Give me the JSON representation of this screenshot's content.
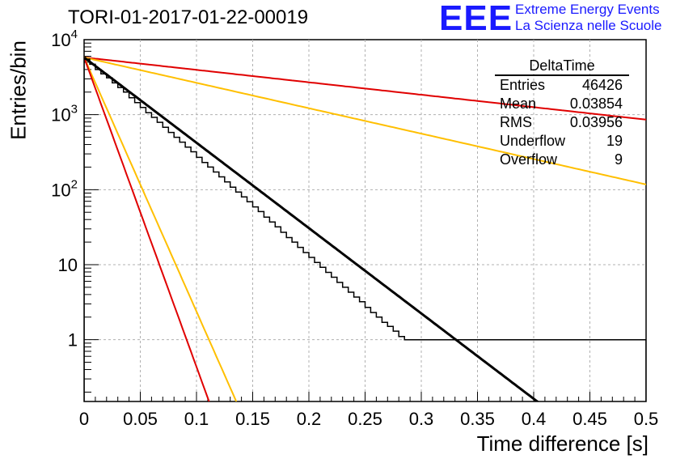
{
  "header": {
    "title": "TORI-01-2017-01-22-00019",
    "logo_text": "EEE",
    "project_line1": "Extreme Energy Events",
    "project_line2": "La Scienza nelle Scuole"
  },
  "stats_box": {
    "title": "DeltaTime",
    "rows": [
      {
        "label": "Entries",
        "value": "46426"
      },
      {
        "label": "Mean",
        "value": "0.03854"
      },
      {
        "label": "RMS",
        "value": "0.03956"
      },
      {
        "label": "Underflow",
        "value": "19"
      },
      {
        "label": "Overflow",
        "value": "9"
      }
    ]
  },
  "chart_data": {
    "type": "line",
    "xlabel": "Time difference [s]",
    "ylabel": "Entries/bin",
    "xlim": [
      0,
      0.5
    ],
    "ylim": [
      0.15,
      10000
    ],
    "yscale": "log",
    "grid": true,
    "x_ticks": [
      "0",
      "0.05",
      "0.1",
      "0.15",
      "0.2",
      "0.25",
      "0.3",
      "0.35",
      "0.4",
      "0.45",
      "0.5"
    ],
    "y_ticks": [
      {
        "value": 1,
        "label": "1"
      },
      {
        "value": 10,
        "label": "10"
      },
      {
        "value": 100,
        "label": "10",
        "exp": "2"
      },
      {
        "value": 1000,
        "label": "10",
        "exp": "3"
      },
      {
        "value": 10000,
        "label": "10",
        "exp": "4"
      }
    ],
    "histogram": {
      "name": "DeltaTime",
      "color": "#000000",
      "bin_width": 0.005,
      "values": [
        5500,
        4700,
        4000,
        3500,
        3100,
        2650,
        2300,
        2000,
        1680,
        1450,
        1250,
        1060,
        920,
        790,
        680,
        580,
        500,
        430,
        370,
        320,
        270,
        230,
        200,
        172,
        148,
        127,
        108,
        93,
        80,
        69,
        59,
        51,
        43,
        37,
        32,
        27,
        23,
        20,
        17,
        14.5,
        12.5,
        10.7,
        9.2,
        7.9,
        6.8,
        5.8,
        5.0,
        4.3,
        3.7,
        3.2,
        2.7,
        2.3,
        2,
        1.7,
        1.5,
        1.3,
        1.1,
        1,
        1,
        1,
        1,
        1,
        1,
        1,
        1,
        1,
        1,
        1,
        1,
        1,
        1,
        1,
        1,
        1,
        1,
        1,
        1,
        1,
        1,
        1,
        1,
        1,
        1,
        1,
        1,
        1,
        1,
        1,
        1,
        1,
        1,
        1,
        1,
        1,
        1,
        1,
        1,
        1,
        1,
        1
      ]
    },
    "fit_line": {
      "color": "#000000",
      "A": 5800,
      "slope": 26.2,
      "x_range": [
        0,
        0.41
      ]
    },
    "reference_lines": [
      {
        "color": "#e00000",
        "A": 5800,
        "slope": 3.82,
        "x_range": [
          0,
          0.5
        ]
      },
      {
        "color": "#ffbf00",
        "A": 5800,
        "slope": 7.8,
        "x_range": [
          0,
          0.5
        ]
      },
      {
        "color": "#ffbf00",
        "A": 5800,
        "slope": 78,
        "x_range": [
          0,
          0.5
        ]
      },
      {
        "color": "#e00000",
        "A": 5800,
        "slope": 95,
        "x_range": [
          0,
          0.5
        ]
      }
    ]
  }
}
